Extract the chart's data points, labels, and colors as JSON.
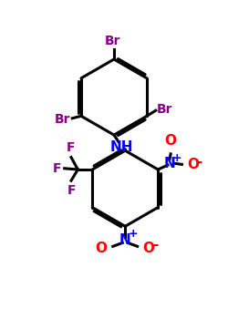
{
  "bg_color": "#ffffff",
  "bond_color": "#000000",
  "br_color": "#8B008B",
  "f_color": "#8B008B",
  "nh_color": "#0000FF",
  "no2_n_color": "#0000FF",
  "no2_o_color": "#FF0000",
  "line_width": 2.2,
  "fig_width": 2.5,
  "fig_height": 3.5,
  "dpi": 100,
  "xlim": [
    0,
    10
  ],
  "ylim": [
    0,
    14
  ]
}
